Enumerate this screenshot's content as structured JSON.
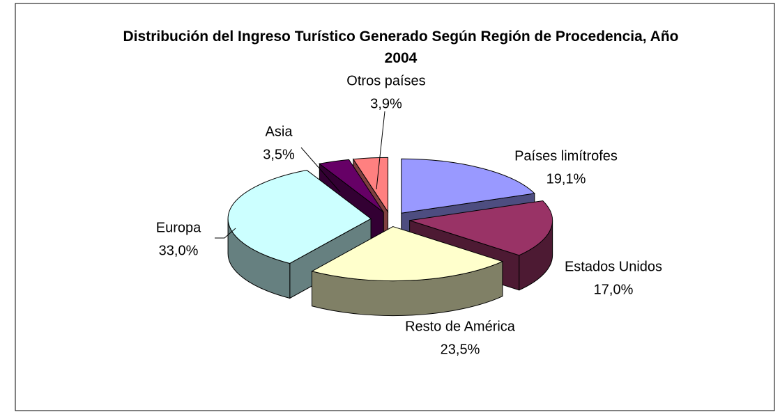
{
  "chart_data": {
    "type": "pie3d",
    "title": "Distribución del Ingreso Turístico Generado Según Región de Procedencia, Año 2004",
    "categories": [
      "Países limítrofes",
      "Estados Unidos",
      "Resto de América",
      "Europa",
      "Asia",
      "Otros países"
    ],
    "values": [
      19.1,
      17.0,
      23.5,
      33.0,
      3.5,
      3.9
    ],
    "value_labels": [
      "19,1%",
      "17,0%",
      "23,5%",
      "33,0%",
      "3,5%",
      "3,9%"
    ],
    "colors": [
      "#9999ff",
      "#993366",
      "#ffffcc",
      "#ccffff",
      "#660066",
      "#ff8080"
    ]
  }
}
